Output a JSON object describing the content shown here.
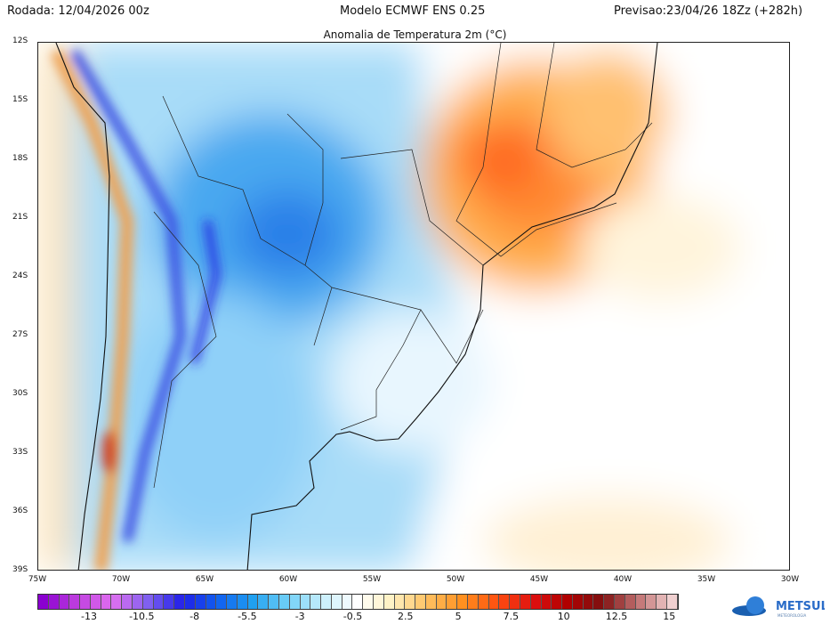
{
  "header": {
    "run": "Rodada: 12/04/2026 00z",
    "model": "Modelo ECMWF ENS 0.25",
    "forecast": "Previsao:23/04/26 18Zz (+282h)"
  },
  "title": "Anomalia de Temperatura 2m (°C)",
  "lat_ticks": [
    "12S",
    "15S",
    "18S",
    "21S",
    "24S",
    "27S",
    "30S",
    "33S",
    "36S",
    "39S"
  ],
  "lon_ticks": [
    "75W",
    "70W",
    "65W",
    "60W",
    "55W",
    "50W",
    "45W",
    "40W",
    "35W",
    "30W"
  ],
  "colorbar": {
    "labels": [
      "-13",
      "-10.5",
      "-8",
      "-5.5",
      "-3",
      "-0.5",
      "2.5",
      "5",
      "7.5",
      "10",
      "12.5",
      "15"
    ],
    "stops": [
      "#8a00d0",
      "#c040e0",
      "#e070f0",
      "#8060f0",
      "#2020e8",
      "#1060f0",
      "#20a0f0",
      "#70d0f8",
      "#c8eefc",
      "#ffffff",
      "#fff0c0",
      "#ffc060",
      "#ff9020",
      "#ff5010",
      "#e01010",
      "#b00000",
      "#801010",
      "#c07070",
      "#f0d0d0"
    ]
  },
  "logo": {
    "name": "METSUL",
    "sub": "METEOROLOGIA"
  }
}
